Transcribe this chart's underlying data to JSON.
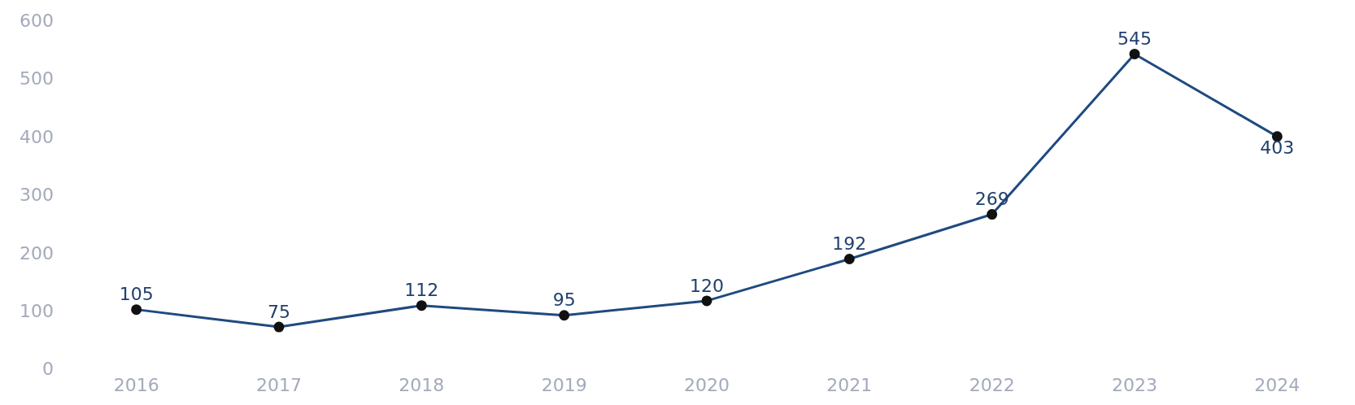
{
  "chart_data": {
    "type": "line",
    "categories": [
      "2016",
      "2017",
      "2018",
      "2019",
      "2020",
      "2021",
      "2022",
      "2023",
      "2024"
    ],
    "series": [
      {
        "color": "#1f4a80",
        "values": [
          105,
          75,
          112,
          95,
          120,
          192,
          269,
          545,
          403
        ]
      }
    ],
    "ylim": [
      0,
      600
    ],
    "yticks": [
      0,
      100,
      200,
      300,
      400,
      500,
      600
    ],
    "grid": false,
    "legend": false,
    "marker": "circle",
    "line_style": "solid",
    "data_labels": true
  }
}
